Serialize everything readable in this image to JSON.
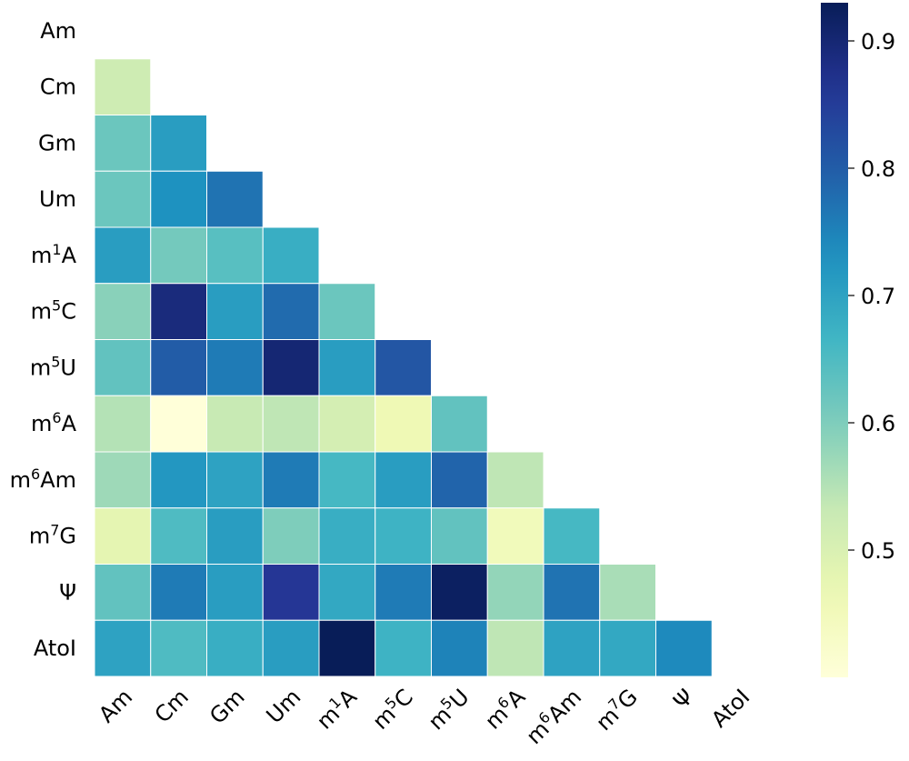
{
  "chart_data": {
    "type": "heatmap",
    "title": "",
    "xlabel": "",
    "ylabel": "",
    "labels": [
      {
        "base": "Am",
        "sup": ""
      },
      {
        "base": "Cm",
        "sup": ""
      },
      {
        "base": "Gm",
        "sup": ""
      },
      {
        "base": "Um",
        "sup": ""
      },
      {
        "base": "m",
        "sup": "1",
        "tail": "A"
      },
      {
        "base": "m",
        "sup": "5",
        "tail": "C"
      },
      {
        "base": "m",
        "sup": "5",
        "tail": "U"
      },
      {
        "base": "m",
        "sup": "6",
        "tail": "A"
      },
      {
        "base": "m",
        "sup": "6",
        "tail": "Am"
      },
      {
        "base": "m",
        "sup": "7",
        "tail": "G"
      },
      {
        "base": "Ψ",
        "sup": ""
      },
      {
        "base": "AtoI",
        "sup": ""
      }
    ],
    "matrix": [
      [
        null
      ],
      [
        0.52
      ],
      [
        0.62,
        0.71
      ],
      [
        0.62,
        0.73,
        0.77
      ],
      [
        0.71,
        0.61,
        0.64,
        0.68
      ],
      [
        0.59,
        0.89,
        0.71,
        0.78,
        0.62
      ],
      [
        0.63,
        0.8,
        0.76,
        0.9,
        0.71,
        0.81
      ],
      [
        0.55,
        0.4,
        0.53,
        0.54,
        0.51,
        0.46,
        0.63
      ],
      [
        0.57,
        0.72,
        0.7,
        0.76,
        0.66,
        0.71,
        0.79,
        0.54
      ],
      [
        0.48,
        0.65,
        0.71,
        0.6,
        0.68,
        0.67,
        0.63,
        0.45,
        0.66
      ],
      [
        0.63,
        0.76,
        0.71,
        0.86,
        0.69,
        0.76,
        0.92,
        0.58,
        0.77,
        0.56
      ],
      [
        0.7,
        0.65,
        0.68,
        0.71,
        0.95,
        0.67,
        0.75,
        0.54,
        0.7,
        0.69,
        0.74
      ]
    ],
    "colormap": "YlGnBu",
    "vmin": 0.4,
    "vmax": 0.93,
    "colorbar": {
      "ticks": [
        0.5,
        0.6,
        0.7,
        0.8,
        0.9
      ],
      "tick_labels": [
        "0.5",
        "0.6",
        "0.7",
        "0.8",
        "0.9"
      ],
      "location": "right"
    },
    "mask": "upper-triangle-and-diagonal"
  }
}
